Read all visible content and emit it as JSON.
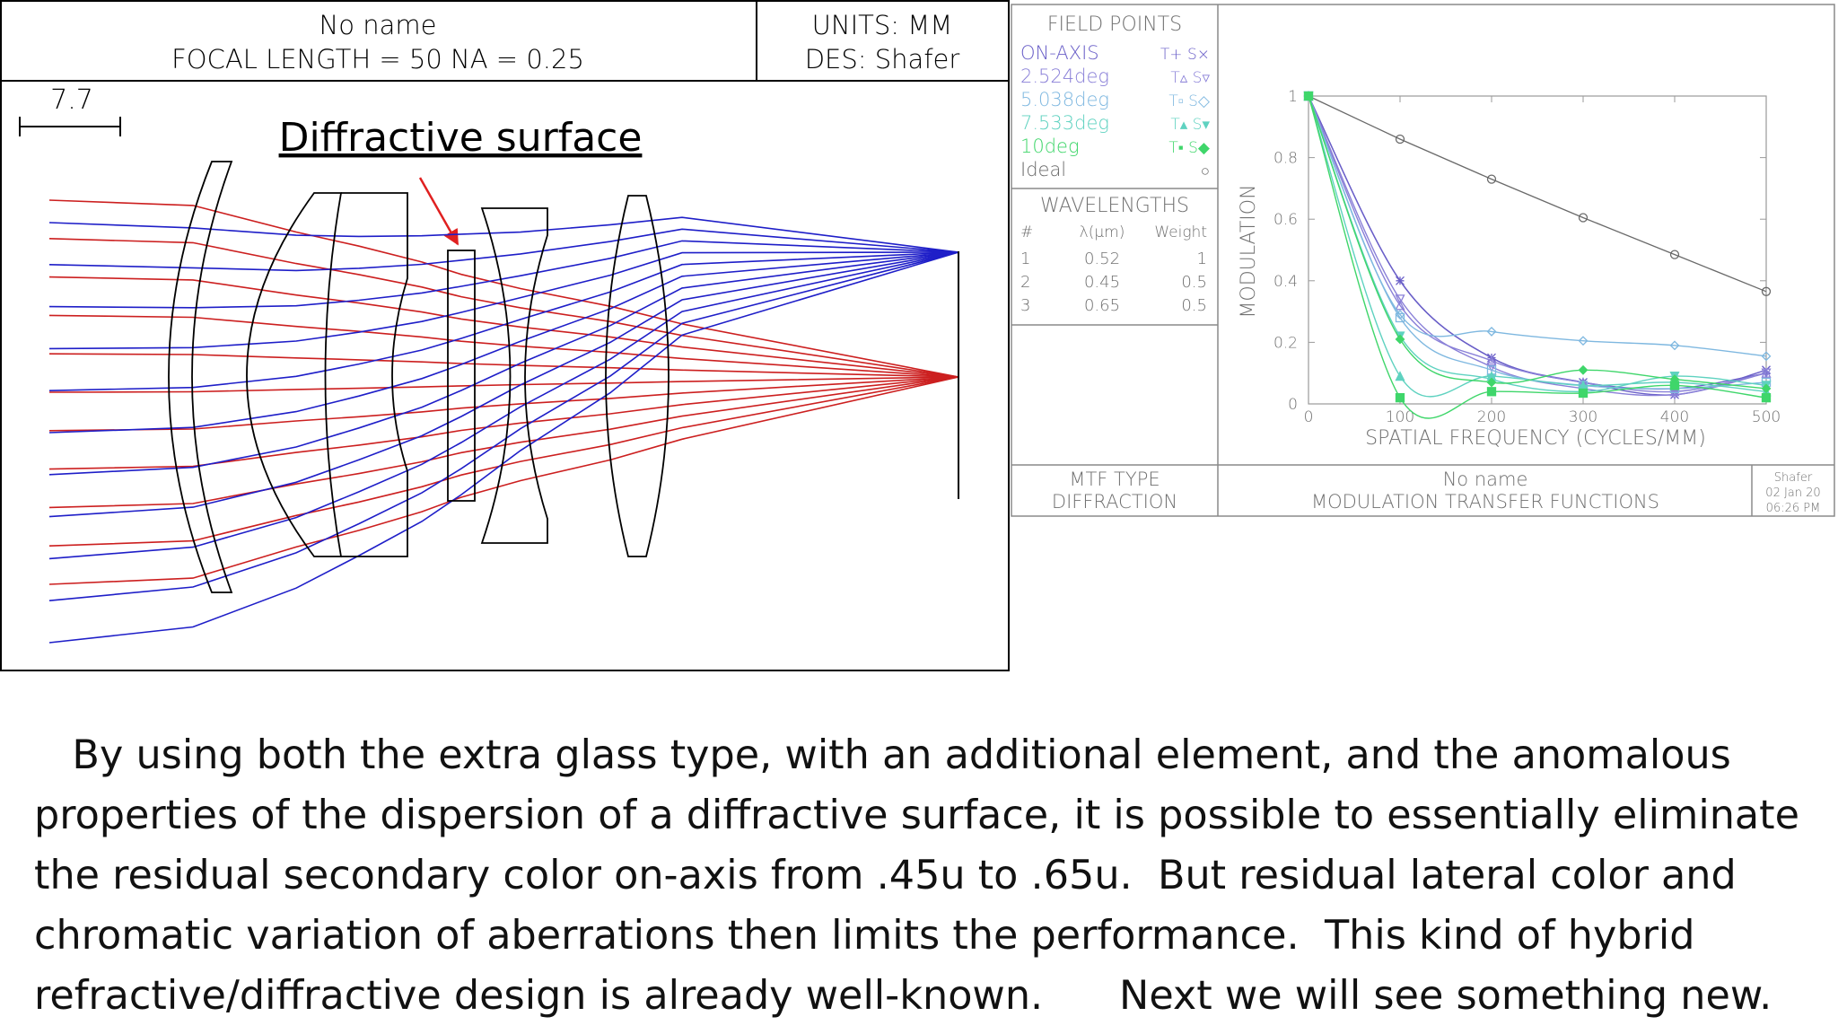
{
  "colors": {
    "red_ray": "#cc1f1f",
    "blue_ray": "#1e1ec8",
    "annotation_arrow": "#e02020",
    "ideal": "#6a6a6a",
    "on_axis": "#6a5fc8",
    "f2": "#8a80d8",
    "f3": "#7fb8e0",
    "f4": "#5fd2c0",
    "f5": "#3fd66a",
    "panel_text": "#707070"
  },
  "lens_panel": {
    "title_line1": "No name",
    "title_line2": "FOCAL LENGTH = 50   NA = 0.25",
    "units": "UNITS: MM",
    "designer": "DES: Shafer",
    "scale_value": "7.7",
    "annotation": "Diffractive surface"
  },
  "mtf_panel": {
    "field_points_header": "FIELD POINTS",
    "field_points": [
      {
        "label": "ON-AXIS",
        "markers": "T+ S×",
        "color_key": "on_axis"
      },
      {
        "label": "2.524deg",
        "markers": "T▵ S▿",
        "color_key": "f2"
      },
      {
        "label": "5.038deg",
        "markers": "T▫ S◇",
        "color_key": "f3"
      },
      {
        "label": "7.533deg",
        "markers": "T▴ S▾",
        "color_key": "f4"
      },
      {
        "label": "10deg",
        "markers": "T▪ S◆",
        "color_key": "f5"
      },
      {
        "label": "Ideal",
        "markers": "○",
        "color_key": "ideal"
      }
    ],
    "wavelengths_header": "WAVELENGTHS",
    "wl_columns": [
      "#",
      "λ(μm)",
      "Weight"
    ],
    "wavelengths": [
      {
        "n": "1",
        "lambda": "0.52",
        "weight": "1"
      },
      {
        "n": "2",
        "lambda": "0.45",
        "weight": "0.5"
      },
      {
        "n": "3",
        "lambda": "0.65",
        "weight": "0.5"
      }
    ],
    "mtf_type_label": "MTF TYPE",
    "mtf_type_value": "DIFFRACTION",
    "footer_title1": "No name",
    "footer_title2": "MODULATION TRANSFER FUNCTIONS",
    "stamp_author": "Shafer",
    "stamp_date": "02 Jan 20",
    "stamp_time": "06:26 PM"
  },
  "chart_data": {
    "type": "line",
    "title": "MODULATION TRANSFER FUNCTIONS",
    "xlabel": "SPATIAL FREQUENCY (CYCLES/MM)",
    "ylabel": "MODULATION",
    "xlim": [
      0,
      500
    ],
    "ylim": [
      0,
      1
    ],
    "xticks": [
      "0",
      "100",
      "200",
      "300",
      "400",
      "500"
    ],
    "yticks": [
      "0",
      "0.2",
      "0.4",
      "0.6",
      "0.8",
      "1"
    ],
    "x": [
      0,
      100,
      200,
      300,
      400,
      500
    ],
    "series": [
      {
        "name": "Ideal",
        "marker": "circle",
        "color_key": "ideal",
        "values": [
          1.0,
          0.86,
          0.73,
          0.605,
          0.485,
          0.365
        ]
      },
      {
        "name": "ON-AXIS T",
        "marker": "plus",
        "color_key": "on_axis",
        "values": [
          1.0,
          0.4,
          0.15,
          0.07,
          0.05,
          0.1
        ]
      },
      {
        "name": "ON-AXIS S",
        "marker": "x",
        "color_key": "on_axis",
        "values": [
          1.0,
          0.4,
          0.15,
          0.07,
          0.03,
          0.11
        ]
      },
      {
        "name": "2.524deg T",
        "marker": "triangle-up",
        "color_key": "f2",
        "values": [
          1.0,
          0.32,
          0.14,
          0.07,
          0.04,
          0.1
        ]
      },
      {
        "name": "2.524deg S",
        "marker": "triangle-down",
        "color_key": "f2",
        "values": [
          1.0,
          0.34,
          0.12,
          0.05,
          0.03,
          0.1
        ]
      },
      {
        "name": "5.038deg T",
        "marker": "square",
        "color_key": "f3",
        "values": [
          1.0,
          0.28,
          0.11,
          0.06,
          0.05,
          0.07
        ]
      },
      {
        "name": "5.038deg S",
        "marker": "diamond",
        "color_key": "f3",
        "values": [
          1.0,
          0.29,
          0.235,
          0.205,
          0.19,
          0.155
        ]
      },
      {
        "name": "7.533deg T",
        "marker": "triangle-up-filled",
        "color_key": "f4",
        "values": [
          1.0,
          0.09,
          0.09,
          0.06,
          0.07,
          0.04
        ]
      },
      {
        "name": "7.533deg S",
        "marker": "triangle-down-filled",
        "color_key": "f4",
        "values": [
          1.0,
          0.22,
          0.08,
          0.04,
          0.09,
          0.06
        ]
      },
      {
        "name": "10deg T",
        "marker": "square-filled",
        "color_key": "f5",
        "values": [
          1.0,
          0.02,
          0.04,
          0.035,
          0.06,
          0.02
        ]
      },
      {
        "name": "10deg S",
        "marker": "diamond-filled",
        "color_key": "f5",
        "values": [
          1.0,
          0.21,
          0.07,
          0.11,
          0.08,
          0.05
        ]
      }
    ]
  },
  "caption": {
    "lines": [
      "   By using both the extra glass type, with an additional element, and the anomalous",
      "properties of the dispersion of a diffractive surface, it is possible to essentially eliminate",
      "the residual secondary color on-axis from .45u to .65u.  But residual lateral color and",
      "chromatic variation of aberrations then limits the performance.  This kind of hybrid",
      "refractive/diffractive design is already well-known.      Next we will see something new."
    ]
  }
}
